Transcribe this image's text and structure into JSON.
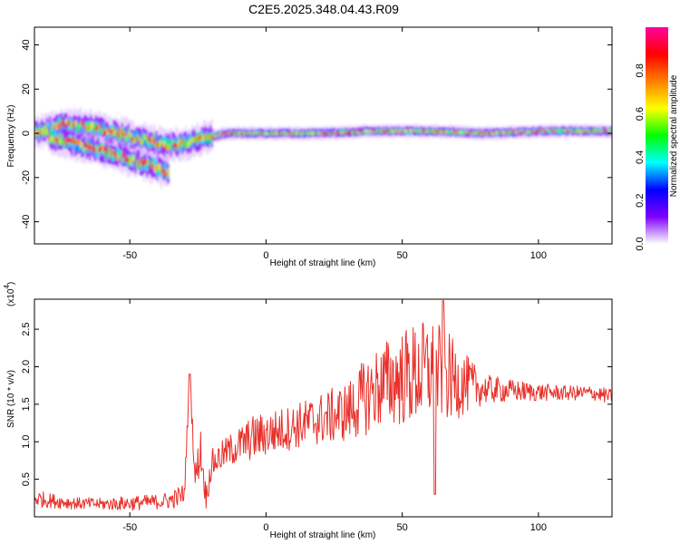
{
  "title": "C2E5.2025.348.04.43.R09",
  "chart_data": [
    {
      "type": "heatmap",
      "xlabel": "Height of straight line (km)",
      "ylabel": "Frequency (Hz)",
      "xlim": [
        -85,
        127
      ],
      "ylim": [
        -50,
        48
      ],
      "xticks": [
        -50,
        0,
        50,
        100
      ],
      "yticks": [
        -40,
        -20,
        0,
        20,
        40
      ],
      "colorbar": {
        "label": "Normalized spectral amplitude",
        "range": [
          0,
          1
        ],
        "ticks": [
          0.0,
          0.2,
          0.4,
          0.6,
          0.8
        ],
        "tick_labels": [
          "0.0",
          "0.2",
          "0.4",
          "0.6",
          "0.8"
        ],
        "colormap": [
          "#ffffff",
          "#7f00ff",
          "#0000ff",
          "#00ffff",
          "#00ff00",
          "#ffff00",
          "#ff8000",
          "#ff0000",
          "#ff00a0"
        ]
      },
      "ridges": [
        {
          "x": [
            -85,
            -75,
            -65,
            -55,
            -45,
            -38,
            -30,
            -22,
            -15,
            0,
            20,
            40,
            60,
            80,
            100,
            127
          ],
          "y": [
            0,
            4,
            3,
            0,
            -3,
            -5,
            -5,
            -2,
            0,
            0,
            0,
            1,
            1,
            0,
            1,
            1
          ]
        },
        {
          "x": [
            -80,
            -70,
            -60,
            -50,
            -42,
            -36
          ],
          "y": [
            -2,
            -5,
            -8,
            -12,
            -15,
            -18
          ]
        }
      ]
    },
    {
      "type": "line",
      "xlabel": "Height of straight line (km)",
      "ylabel": "SNR (10 * v/v)",
      "y_multiplier": "(x10",
      "y_multiplier_exp": "4",
      "xlim": [
        -85,
        127
      ],
      "ylim": [
        0,
        2.9
      ],
      "xticks": [
        -50,
        0,
        50,
        100
      ],
      "yticks": [
        0.5,
        1.0,
        1.5,
        2.0,
        2.5
      ],
      "ytick_labels": [
        "0.5",
        "1.0",
        "1.5",
        "2.0",
        "2.5"
      ],
      "series": [
        {
          "color": "#e8302a",
          "x": [
            -85,
            -80,
            -70,
            -60,
            -50,
            -40,
            -35,
            -30,
            -28,
            -26,
            -24,
            -22,
            -20,
            -15,
            -10,
            -5,
            0,
            10,
            20,
            30,
            35,
            40,
            45,
            50,
            55,
            60,
            65,
            70,
            75,
            80,
            90,
            100,
            110,
            120,
            127
          ],
          "y": [
            0.25,
            0.22,
            0.18,
            0.17,
            0.18,
            0.2,
            0.22,
            0.3,
            1.9,
            0.5,
            0.9,
            0.25,
            0.7,
            0.85,
            0.95,
            1.05,
            1.1,
            1.2,
            1.3,
            1.4,
            1.55,
            1.7,
            1.8,
            1.85,
            1.9,
            1.95,
            1.9,
            1.8,
            1.75,
            1.7,
            1.68,
            1.66,
            1.65,
            1.65,
            1.6
          ],
          "amplitude": [
            0.12,
            0.1,
            0.08,
            0.08,
            0.1,
            0.1,
            0.12,
            0.15,
            0.1,
            0.2,
            0.3,
            0.15,
            0.2,
            0.2,
            0.25,
            0.3,
            0.3,
            0.3,
            0.35,
            0.4,
            0.5,
            0.55,
            0.6,
            0.65,
            0.7,
            0.7,
            0.65,
            0.5,
            0.35,
            0.2,
            0.15,
            0.12,
            0.1,
            0.1,
            0.1
          ]
        }
      ]
    }
  ]
}
